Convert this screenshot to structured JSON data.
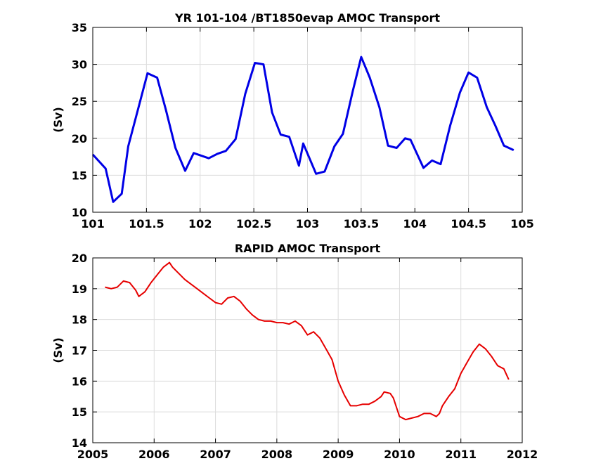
{
  "chart_data": [
    {
      "type": "line",
      "title": "YR 101-104 /BT1850evap AMOC Transport",
      "xlabel": "",
      "ylabel": "(Sv)",
      "xlim": [
        101,
        105
      ],
      "ylim": [
        10,
        35
      ],
      "xticks": [
        101,
        101.5,
        102,
        102.5,
        103,
        103.5,
        104,
        104.5,
        105
      ],
      "xtick_labels": [
        "101",
        "101.5",
        "102",
        "102.5",
        "103",
        "103.5",
        "104",
        "104.5",
        "105"
      ],
      "yticks": [
        10,
        15,
        20,
        25,
        30,
        35
      ],
      "ytick_labels": [
        "10",
        "15",
        "20",
        "25",
        "30",
        "35"
      ],
      "grid": true,
      "color": "#0000e6",
      "series": [
        {
          "x": [
            101.0,
            101.12,
            101.19,
            101.27,
            101.33,
            101.43,
            101.51,
            101.6,
            101.68,
            101.77,
            101.86,
            101.94,
            102.08,
            102.16,
            102.24,
            102.33,
            102.42,
            102.51,
            102.59,
            102.67,
            102.75,
            102.83,
            102.92,
            102.96,
            103.08,
            103.16,
            103.25,
            103.33,
            103.42,
            103.5,
            103.58,
            103.67,
            103.75,
            103.83,
            103.91,
            103.96,
            104.08,
            104.16,
            104.24,
            104.33,
            104.42,
            104.5,
            104.58,
            104.67,
            104.75,
            104.83,
            104.92
          ],
          "y": [
            17.8,
            15.9,
            11.4,
            12.5,
            18.9,
            24.4,
            28.8,
            28.2,
            23.9,
            18.7,
            15.6,
            18.0,
            17.3,
            17.9,
            18.3,
            19.9,
            26.0,
            30.2,
            30.0,
            23.5,
            20.5,
            20.2,
            16.3,
            19.3,
            15.2,
            15.5,
            18.9,
            20.6,
            26.3,
            31.0,
            28.2,
            24.2,
            19.0,
            18.7,
            20.0,
            19.8,
            16.0,
            17.0,
            16.5,
            21.8,
            26.2,
            28.9,
            28.2,
            24.2,
            21.7,
            19.0,
            18.4
          ]
        }
      ]
    },
    {
      "type": "line",
      "title": "RAPID AMOC Transport",
      "xlabel": "",
      "ylabel": "(Sv)",
      "xlim": [
        2005,
        2012
      ],
      "ylim": [
        14,
        20
      ],
      "xticks": [
        2005,
        2006,
        2007,
        2008,
        2009,
        2010,
        2011,
        2012
      ],
      "xtick_labels": [
        "2005",
        "2006",
        "2007",
        "2008",
        "2009",
        "2010",
        "2011",
        "2012"
      ],
      "yticks": [
        14,
        15,
        16,
        17,
        18,
        19,
        20
      ],
      "ytick_labels": [
        "14",
        "15",
        "16",
        "17",
        "18",
        "19",
        "20"
      ],
      "grid": true,
      "color": "#e60000",
      "series": [
        {
          "x": [
            2005.2,
            2005.3,
            2005.4,
            2005.5,
            2005.6,
            2005.7,
            2005.75,
            2005.85,
            2005.95,
            2006.05,
            2006.15,
            2006.25,
            2006.3,
            2006.4,
            2006.5,
            2006.6,
            2006.7,
            2006.8,
            2006.9,
            2007.0,
            2007.1,
            2007.2,
            2007.3,
            2007.4,
            2007.5,
            2007.6,
            2007.7,
            2007.8,
            2007.9,
            2008.0,
            2008.1,
            2008.2,
            2008.3,
            2008.4,
            2008.5,
            2008.6,
            2008.7,
            2008.8,
            2008.9,
            2009.0,
            2009.1,
            2009.2,
            2009.3,
            2009.4,
            2009.5,
            2009.6,
            2009.7,
            2009.75,
            2009.85,
            2009.9,
            2010.0,
            2010.1,
            2010.2,
            2010.3,
            2010.4,
            2010.5,
            2010.6,
            2010.65,
            2010.7,
            2010.8,
            2010.9,
            2011.0,
            2011.1,
            2011.2,
            2011.3,
            2011.4,
            2011.5,
            2011.6,
            2011.7,
            2011.78
          ],
          "y": [
            19.05,
            19.0,
            19.05,
            19.25,
            19.2,
            18.95,
            18.75,
            18.9,
            19.2,
            19.45,
            19.7,
            19.85,
            19.7,
            19.5,
            19.3,
            19.15,
            19.0,
            18.85,
            18.7,
            18.55,
            18.5,
            18.7,
            18.75,
            18.6,
            18.35,
            18.15,
            18.0,
            17.95,
            17.95,
            17.9,
            17.9,
            17.85,
            17.95,
            17.8,
            17.5,
            17.6,
            17.4,
            17.05,
            16.7,
            16.0,
            15.55,
            15.2,
            15.2,
            15.25,
            15.25,
            15.35,
            15.5,
            15.65,
            15.6,
            15.45,
            14.85,
            14.75,
            14.8,
            14.85,
            14.95,
            14.95,
            14.85,
            14.95,
            15.2,
            15.5,
            15.75,
            16.25,
            16.6,
            16.95,
            17.2,
            17.05,
            16.8,
            16.5,
            16.4,
            16.05
          ]
        }
      ]
    }
  ]
}
